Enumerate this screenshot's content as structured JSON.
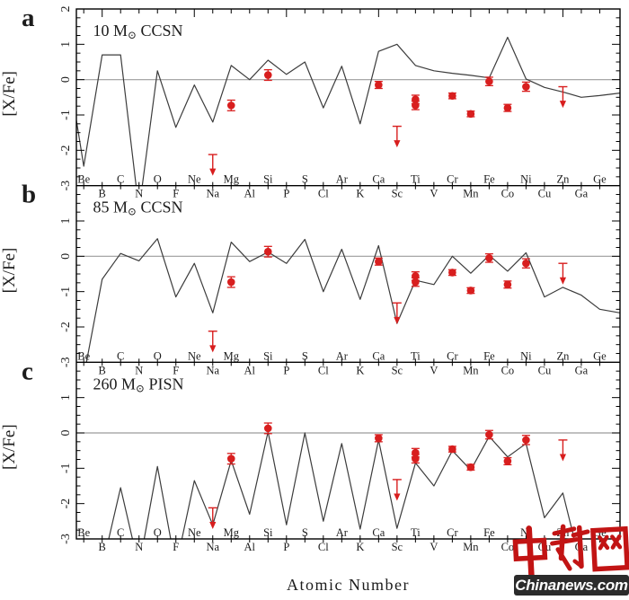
{
  "watermark": {
    "logo_text": "中新网",
    "banner_text": "Chinanews.com",
    "logo_color": "#c21414",
    "banner_bg": "#2b2b2b",
    "banner_text_color": "#ffffff"
  },
  "chart_data": {
    "type": "line",
    "xlabel": "Atomic Number",
    "ylabel": "[X/Fe]",
    "ylim": [
      -3,
      2
    ],
    "xlim": [
      3.6,
      33.1
    ],
    "y_tick_labels": [
      "2",
      "1",
      "0",
      "-1",
      "-2",
      "-3"
    ],
    "y_tick_values": [
      2,
      1,
      0,
      -1,
      -2,
      -3
    ],
    "y_minor_step": 0.25,
    "x_major_tick_step": 5,
    "grid": "zero-line-only",
    "legend": "none",
    "elements": [
      [
        "Be",
        4
      ],
      [
        "B",
        5
      ],
      [
        "C",
        6
      ],
      [
        "N",
        7
      ],
      [
        "O",
        8
      ],
      [
        "F",
        9
      ],
      [
        "Ne",
        10
      ],
      [
        "Na",
        11
      ],
      [
        "Mg",
        12
      ],
      [
        "Al",
        13
      ],
      [
        "Si",
        14
      ],
      [
        "P",
        15
      ],
      [
        "S",
        16
      ],
      [
        "Cl",
        17
      ],
      [
        "Ar",
        18
      ],
      [
        "K",
        19
      ],
      [
        "Ca",
        20
      ],
      [
        "Sc",
        21
      ],
      [
        "Ti",
        22
      ],
      [
        "V",
        23
      ],
      [
        "Cr",
        24
      ],
      [
        "Mn",
        25
      ],
      [
        "Fe",
        26
      ],
      [
        "Co",
        27
      ],
      [
        "Ni",
        28
      ],
      [
        "Cu",
        29
      ],
      [
        "Zn",
        30
      ],
      [
        "Ga",
        31
      ],
      [
        "Ge",
        32
      ]
    ],
    "colors": {
      "model_line": "#3c3c3c",
      "zero_line": "#9c9c9c",
      "axis": "#000000",
      "text": "#1c1c1c",
      "data": "#d81e1e"
    },
    "panels": [
      {
        "panel_label": "a",
        "title": {
          "pre": "10 M",
          "sub": "⊙",
          "post": " CCSN"
        },
        "model_line": {
          "x": [
            3.6,
            4,
            5,
            6,
            7,
            8,
            9,
            10,
            11,
            12,
            13,
            14,
            15,
            16,
            17,
            18,
            19,
            20,
            21,
            22,
            23,
            24,
            25,
            26,
            27,
            28,
            29,
            30,
            31,
            32,
            33.1
          ],
          "y": [
            -1.15,
            -2.45,
            0.7,
            0.7,
            -3.7,
            0.25,
            -1.35,
            -0.15,
            -1.2,
            0.4,
            0.0,
            0.55,
            0.15,
            0.5,
            -0.8,
            0.38,
            -1.25,
            0.8,
            1.0,
            0.4,
            0.25,
            0.18,
            0.12,
            0.05,
            1.2,
            0.02,
            -0.22,
            -0.35,
            -0.5,
            -0.45,
            -0.38
          ]
        }
      },
      {
        "panel_label": "b",
        "title": {
          "pre": "85 M",
          "sub": "⊙",
          "post": " CCSN"
        },
        "model_line": {
          "x": [
            4,
            5,
            6,
            7,
            8,
            9,
            10,
            11,
            12,
            13,
            14,
            15,
            16,
            17,
            18,
            19,
            20,
            21,
            22,
            23,
            24,
            25,
            26,
            27,
            28,
            29,
            30,
            31,
            32,
            33.1
          ],
          "y": [
            -3.4,
            -0.65,
            0.08,
            -0.13,
            0.5,
            -1.15,
            -0.2,
            -1.6,
            0.4,
            -0.15,
            0.12,
            -0.2,
            0.48,
            -1.0,
            0.2,
            -1.22,
            0.3,
            -1.9,
            -0.68,
            -0.8,
            0.0,
            -0.48,
            0.03,
            -0.42,
            0.1,
            -1.15,
            -0.88,
            -1.1,
            -1.5,
            -1.6
          ]
        }
      },
      {
        "panel_label": "c",
        "title": {
          "pre": "260 M",
          "sub": "⊙",
          "post": " PISN"
        },
        "model_line": {
          "x": [
            4,
            5,
            6,
            7,
            8,
            9,
            10,
            11,
            12,
            13,
            14,
            15,
            16,
            17,
            18,
            19,
            20,
            21,
            22,
            23,
            24,
            25,
            26,
            27,
            28,
            29,
            30,
            31,
            32
          ],
          "y": [
            -3.8,
            -3.8,
            -1.55,
            -3.8,
            -0.95,
            -3.8,
            -1.35,
            -2.6,
            -0.78,
            -2.3,
            0.03,
            -2.6,
            0.0,
            -2.5,
            -0.3,
            -2.72,
            -0.2,
            -2.7,
            -0.85,
            -1.5,
            -0.5,
            -1.05,
            -0.1,
            -0.68,
            -0.3,
            -2.4,
            -1.7,
            -3.8,
            -3.8
          ]
        }
      }
    ],
    "observations": {
      "points": [
        {
          "element": "Mg",
          "z": 12,
          "value": -0.73,
          "err": 0.15
        },
        {
          "element": "Si",
          "z": 14,
          "value": 0.13,
          "err": 0.15
        },
        {
          "element": "Ca",
          "z": 20,
          "value": -0.15,
          "err": 0.1
        },
        {
          "element": "Ti",
          "z": 22,
          "value": -0.56,
          "err": 0.12
        },
        {
          "element": "Ti",
          "z": 22,
          "value": -0.73,
          "err": 0.12
        },
        {
          "element": "Cr",
          "z": 24,
          "value": -0.46,
          "err": 0.08
        },
        {
          "element": "Mn",
          "z": 25,
          "value": -0.97,
          "err": 0.08
        },
        {
          "element": "Fe",
          "z": 26,
          "value": -0.05,
          "err": 0.12
        },
        {
          "element": "Co",
          "z": 27,
          "value": -0.8,
          "err": 0.1
        },
        {
          "element": "Ni",
          "z": 28,
          "value": -0.2,
          "err": 0.13
        }
      ],
      "upper_limits": [
        {
          "element": "Na",
          "z": 11,
          "from": -2.12,
          "to": -2.72
        },
        {
          "element": "Sc",
          "z": 21,
          "from": -1.32,
          "to": -1.92
        },
        {
          "element": "Zn",
          "z": 30,
          "from": -0.2,
          "to": -0.8
        }
      ]
    }
  }
}
